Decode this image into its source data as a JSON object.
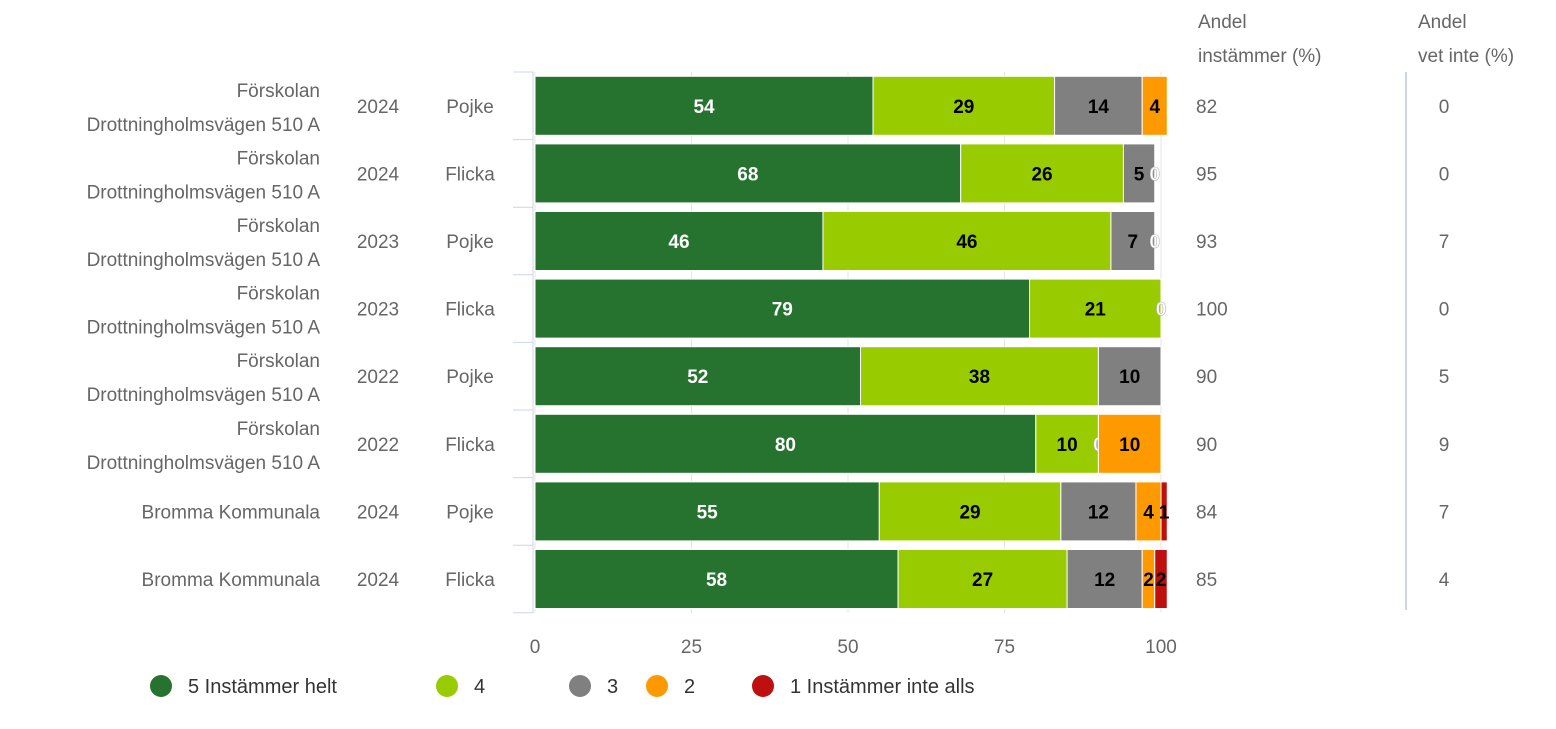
{
  "chart_data": {
    "type": "bar",
    "orientation": "horizontal",
    "stacked": true,
    "xlim": [
      0,
      100
    ],
    "xticks": [
      "0",
      "25",
      "50",
      "75",
      "100"
    ],
    "grid": true,
    "legend_position": "bottom",
    "rows": [
      {
        "label": [
          "Förskolan",
          "Drottningholmsvägen 510 A"
        ],
        "year": "2024",
        "gender": "Pojke",
        "andel_instammer": "82",
        "andel_vet_inte": "0"
      },
      {
        "label": [
          "Förskolan",
          "Drottningholmsvägen 510 A"
        ],
        "year": "2024",
        "gender": "Flicka",
        "andel_instammer": "95",
        "andel_vet_inte": "0"
      },
      {
        "label": [
          "Förskolan",
          "Drottningholmsvägen 510 A"
        ],
        "year": "2023",
        "gender": "Pojke",
        "andel_instammer": "93",
        "andel_vet_inte": "7"
      },
      {
        "label": [
          "Förskolan",
          "Drottningholmsvägen 510 A"
        ],
        "year": "2023",
        "gender": "Flicka",
        "andel_instammer": "100",
        "andel_vet_inte": "0"
      },
      {
        "label": [
          "Förskolan",
          "Drottningholmsvägen 510 A"
        ],
        "year": "2022",
        "gender": "Pojke",
        "andel_instammer": "90",
        "andel_vet_inte": "5"
      },
      {
        "label": [
          "Förskolan",
          "Drottningholmsvägen 510 A"
        ],
        "year": "2022",
        "gender": "Flicka",
        "andel_instammer": "90",
        "andel_vet_inte": "9"
      },
      {
        "label": [
          "Bromma Kommunala"
        ],
        "year": "2024",
        "gender": "Pojke",
        "andel_instammer": "84",
        "andel_vet_inte": "7"
      },
      {
        "label": [
          "Bromma Kommunala"
        ],
        "year": "2024",
        "gender": "Flicka",
        "andel_instammer": "85",
        "andel_vet_inte": "4"
      }
    ],
    "series": [
      {
        "name": "5 Instämmer helt",
        "color": "#267330",
        "label_color": "#ffffff",
        "values": [
          54,
          68,
          46,
          79,
          52,
          80,
          55,
          58
        ]
      },
      {
        "name": "4",
        "color": "#99cc00",
        "label_color": "#000000",
        "values": [
          29,
          26,
          46,
          21,
          38,
          10,
          29,
          27
        ]
      },
      {
        "name": "3",
        "color": "#808080",
        "label_color": "#000000",
        "values": [
          14,
          5,
          7,
          0,
          10,
          0,
          12,
          12
        ]
      },
      {
        "name": "2",
        "color": "#ff9900",
        "label_color": "#000000",
        "values": [
          4,
          0,
          0,
          0,
          0,
          10,
          4,
          2
        ]
      },
      {
        "name": "1 Instämmer inte alls",
        "color": "#c00f0f",
        "label_color": "#ffffff",
        "values": [
          0,
          0,
          0,
          0,
          0,
          0,
          1,
          2
        ]
      }
    ],
    "columns": {
      "andel_instammer": [
        "Andel",
        "instämmer (%)"
      ],
      "andel_vet_inte": [
        "Andel",
        "vet inte (%)"
      ]
    }
  }
}
